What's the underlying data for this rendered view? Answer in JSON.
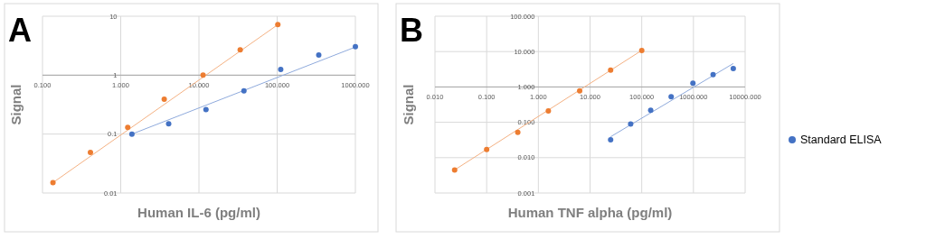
{
  "chart_data": [
    {
      "type": "scatter",
      "title": "A",
      "xlabel": "Human IL-6 (pg/ml)",
      "ylabel": "Signal",
      "log": "xy",
      "grid": true,
      "legend": false,
      "marker": "circle",
      "xlim": [
        0.1,
        1000
      ],
      "ylim": [
        0.01,
        10
      ],
      "xticks": [
        {
          "value": 0.1,
          "label": "0.100"
        },
        {
          "value": 1,
          "label": "1.000"
        },
        {
          "value": 10,
          "label": "10.000"
        },
        {
          "value": 100,
          "label": "100.000"
        },
        {
          "value": 1000,
          "label": "1000.000"
        }
      ],
      "yticks": [
        0.01,
        0.1,
        1,
        10
      ],
      "series": [
        {
          "type": "line",
          "color": "#f4b183",
          "marker": "none",
          "x": [
            0.136,
            102
          ],
          "values": [
            0.015,
            7.2
          ]
        },
        {
          "type": "line",
          "color": "#8faadc",
          "marker": "none",
          "x": [
            1.39,
            1000
          ],
          "values": [
            0.1,
            3.0
          ]
        },
        {
          "color": "#ed7d31",
          "x": [
            0.136,
            0.41,
            1.23,
            3.6,
            11.3,
            33.7,
            102
          ],
          "values": [
            0.015,
            0.049,
            0.13,
            0.39,
            1.0,
            2.7,
            7.2
          ]
        },
        {
          "color": "#4472c4",
          "x": [
            1.39,
            4.1,
            12.3,
            37.6,
            111,
            340,
            1000
          ],
          "values": [
            0.1,
            0.15,
            0.26,
            0.54,
            1.25,
            2.2,
            3.05
          ]
        }
      ]
    },
    {
      "type": "scatter",
      "title": "B",
      "xlabel": "Human TNF alpha (pg/ml)",
      "ylabel": "Signal",
      "log": "xy",
      "grid": true,
      "legend": "right",
      "marker": "circle",
      "xlim": [
        0.01,
        10000
      ],
      "ylim": [
        0.001,
        100
      ],
      "xticks": [
        {
          "value": 0.01,
          "label": "0.010"
        },
        {
          "value": 0.1,
          "label": "0.100"
        },
        {
          "value": 1,
          "label": "1.000"
        },
        {
          "value": 10,
          "label": "10.000"
        },
        {
          "value": 100,
          "label": "100.000"
        },
        {
          "value": 1000,
          "label": "1000.000"
        },
        {
          "value": 10000,
          "label": "10000.000"
        }
      ],
      "yticks": [
        {
          "value": 0.001,
          "label": "0.001"
        },
        {
          "value": 0.01,
          "label": "0.010"
        },
        {
          "value": 0.1,
          "label": "0.100"
        },
        {
          "value": 1,
          "label": "1.000"
        },
        {
          "value": 10,
          "label": "10.000"
        },
        {
          "value": 100,
          "label": "100.000"
        }
      ],
      "series": [
        {
          "type": "line",
          "color": "#f4b183",
          "marker": "none",
          "x": [
            0.024,
            100
          ],
          "values": [
            0.0045,
            10.8
          ]
        },
        {
          "type": "line",
          "color": "#8faadc",
          "marker": "none",
          "x": [
            25,
            5900
          ],
          "values": [
            0.039,
            4.6
          ]
        },
        {
          "color": "#ed7d31",
          "x": [
            0.024,
            0.1,
            0.4,
            1.56,
            6.3,
            25,
            100
          ],
          "values": [
            0.0045,
            0.017,
            0.052,
            0.21,
            0.77,
            3.0,
            10.8
          ]
        },
        {
          "name": "Standard ELISA",
          "color": "#4472c4",
          "x": [
            25,
            61,
            149,
            371,
            977,
            2400,
            5900
          ],
          "values": [
            0.032,
            0.089,
            0.22,
            0.53,
            1.27,
            2.24,
            3.3
          ]
        }
      ]
    }
  ]
}
